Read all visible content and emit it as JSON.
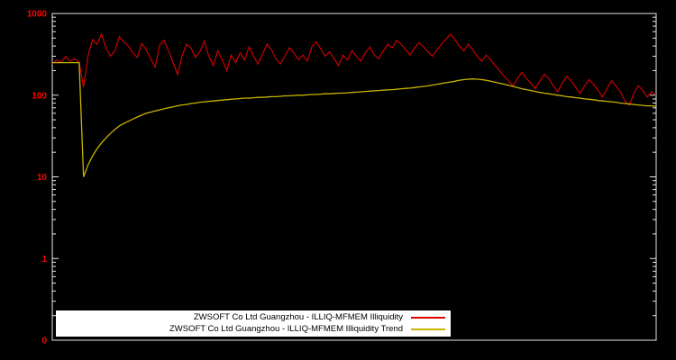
{
  "axis": {
    "tick_label_color": "#ff0000",
    "border_color": "#e8e8e8"
  },
  "chart_data": {
    "type": "line",
    "title": "",
    "xlabel": "",
    "ylabel": "",
    "y_scale": "log",
    "ylim": [
      0.1,
      1000
    ],
    "grid": false,
    "legend_position": "bottom-center-inside",
    "y_ticks": [
      {
        "label": "1000",
        "value": 1000
      },
      {
        "label": "100",
        "value": 100
      },
      {
        "label": "10",
        "value": 10
      },
      {
        "label": "1",
        "value": 1
      },
      {
        "label": "0",
        "value": 0.1
      }
    ],
    "series": [
      {
        "name": "ZWSOFT Co Ltd Guangzhou - ILLIQ-MFMEM Illiquidity",
        "color": "#dd0000",
        "values": [
          240,
          270,
          250,
          300,
          260,
          280,
          255,
          125,
          310,
          480,
          420,
          560,
          380,
          300,
          350,
          520,
          450,
          400,
          330,
          290,
          430,
          360,
          280,
          220,
          410,
          470,
          350,
          250,
          180,
          300,
          420,
          380,
          290,
          340,
          460,
          300,
          230,
          350,
          270,
          200,
          310,
          250,
          330,
          270,
          390,
          300,
          240,
          320,
          420,
          360,
          280,
          240,
          300,
          380,
          330,
          270,
          310,
          260,
          390,
          450,
          370,
          300,
          340,
          280,
          230,
          310,
          270,
          350,
          300,
          260,
          330,
          390,
          310,
          280,
          350,
          420,
          380,
          470,
          420,
          360,
          310,
          380,
          440,
          390,
          340,
          300,
          360,
          420,
          480,
          560,
          480,
          400,
          350,
          420,
          360,
          300,
          260,
          310,
          270,
          230,
          200,
          170,
          150,
          130,
          160,
          190,
          160,
          140,
          120,
          150,
          180,
          160,
          130,
          110,
          140,
          170,
          150,
          125,
          105,
          130,
          155,
          135,
          115,
          95,
          120,
          150,
          130,
          110,
          85,
          75,
          105,
          130,
          115,
          95,
          110,
          100
        ]
      },
      {
        "name": "ZWSOFT Co Ltd Guangzhou - ILLIQ-MFMEM Illiquidity Trend",
        "color": "#c8b400",
        "values": [
          250,
          250,
          250,
          250,
          250,
          250,
          250,
          10,
          14,
          18,
          22,
          26,
          30,
          34,
          38,
          42,
          45,
          48,
          51,
          54,
          57,
          60,
          62,
          64,
          66,
          68,
          70,
          72,
          74,
          76,
          77,
          79,
          80,
          82,
          83,
          84,
          85,
          86,
          87,
          88,
          89,
          90,
          91,
          92,
          92,
          93,
          94,
          94,
          95,
          96,
          96,
          97,
          98,
          98,
          99,
          100,
          100,
          101,
          102,
          102,
          103,
          104,
          104,
          105,
          106,
          106,
          107,
          108,
          109,
          110,
          111,
          112,
          113,
          114,
          115,
          116,
          117,
          118,
          120,
          121,
          122,
          124,
          126,
          128,
          130,
          133,
          136,
          139,
          142,
          145,
          148,
          152,
          155,
          157,
          158,
          157,
          155,
          152,
          148,
          144,
          140,
          136,
          132,
          128,
          124,
          120,
          117,
          114,
          111,
          108,
          106,
          104,
          102,
          100,
          98,
          96,
          95,
          93,
          92,
          90,
          89,
          88,
          86,
          85,
          84,
          83,
          82,
          80,
          79,
          78,
          77,
          76,
          75,
          74,
          74,
          73
        ]
      }
    ]
  }
}
